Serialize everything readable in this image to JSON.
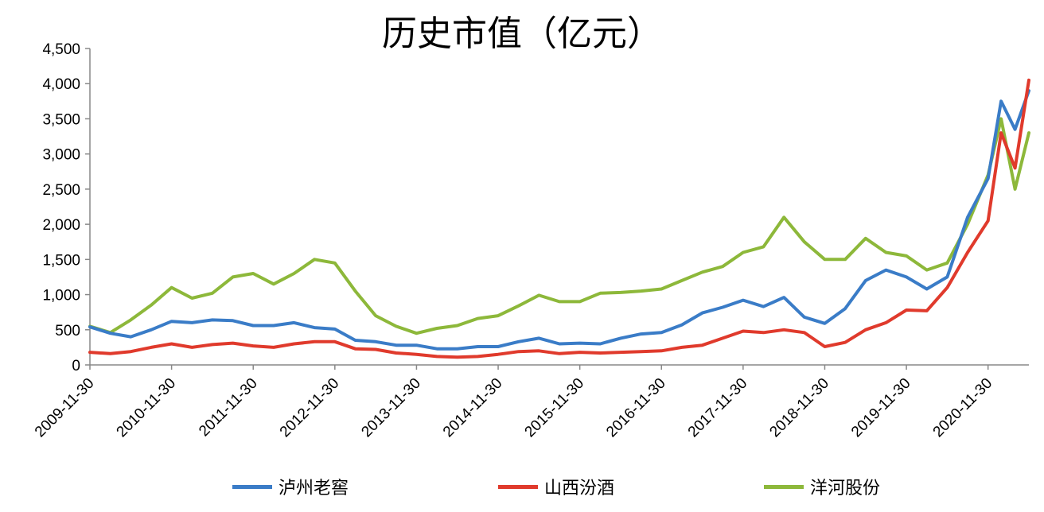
{
  "chart_data": {
    "type": "line",
    "title": "历史市值（亿元）",
    "xlabel": "",
    "ylabel": "",
    "ylim": [
      0,
      4500
    ],
    "yticks": [
      0,
      500,
      1000,
      1500,
      2000,
      2500,
      3000,
      3500,
      4000,
      4500
    ],
    "ytick_labels": [
      "0",
      "500",
      "1,000",
      "1,500",
      "2,000",
      "2,500",
      "3,000",
      "3,500",
      "4,000",
      "4,500"
    ],
    "xticks": [
      "2009-11-30",
      "2010-11-30",
      "2011-11-30",
      "2012-11-30",
      "2013-11-30",
      "2014-11-30",
      "2015-11-30",
      "2016-11-30",
      "2017-11-30",
      "2018-11-30",
      "2019-11-30",
      "2020-11-30"
    ],
    "x": [
      2009.92,
      2010.17,
      2010.42,
      2010.67,
      2010.92,
      2011.17,
      2011.42,
      2011.67,
      2011.92,
      2012.17,
      2012.42,
      2012.67,
      2012.92,
      2013.17,
      2013.42,
      2013.67,
      2013.92,
      2014.17,
      2014.42,
      2014.67,
      2014.92,
      2015.17,
      2015.42,
      2015.67,
      2015.92,
      2016.17,
      2016.42,
      2016.67,
      2016.92,
      2017.17,
      2017.42,
      2017.67,
      2017.92,
      2018.17,
      2018.42,
      2018.67,
      2018.92,
      2019.17,
      2019.42,
      2019.67,
      2019.92,
      2020.17,
      2020.42,
      2020.67,
      2020.92,
      2021.08,
      2021.25,
      2021.42
    ],
    "series": [
      {
        "name": "泸州老窖",
        "color": "#3a7cc7",
        "values": [
          540,
          450,
          400,
          500,
          620,
          600,
          640,
          630,
          560,
          560,
          600,
          530,
          510,
          350,
          330,
          280,
          280,
          230,
          230,
          260,
          260,
          330,
          380,
          300,
          310,
          300,
          380,
          440,
          460,
          570,
          740,
          820,
          920,
          830,
          960,
          680,
          590,
          800,
          1200,
          1350,
          1250,
          1080,
          1250,
          2100,
          2650,
          3750,
          3350,
          3900
        ]
      },
      {
        "name": "山西汾酒",
        "color": "#e03a2c",
        "values": [
          180,
          160,
          190,
          250,
          300,
          250,
          290,
          310,
          270,
          250,
          300,
          330,
          330,
          230,
          220,
          170,
          150,
          120,
          110,
          120,
          150,
          190,
          200,
          160,
          180,
          170,
          180,
          190,
          200,
          250,
          280,
          380,
          480,
          460,
          500,
          460,
          260,
          320,
          500,
          600,
          780,
          770,
          1100,
          1600,
          2050,
          3300,
          2800,
          4050
        ]
      },
      {
        "name": "洋河股份",
        "color": "#8db83a",
        "values": [
          550,
          460,
          640,
          850,
          1100,
          950,
          1020,
          1250,
          1300,
          1150,
          1300,
          1500,
          1450,
          1050,
          700,
          550,
          450,
          520,
          560,
          660,
          700,
          840,
          990,
          900,
          900,
          1020,
          1030,
          1050,
          1080,
          1200,
          1320,
          1400,
          1600,
          1680,
          2100,
          1750,
          1500,
          1500,
          1800,
          1600,
          1550,
          1350,
          1450,
          2000,
          2700,
          3500,
          2500,
          3300
        ]
      }
    ]
  },
  "legend": {
    "items": [
      {
        "label": "泸州老窖",
        "color": "#3a7cc7"
      },
      {
        "label": "山西汾酒",
        "color": "#e03a2c"
      },
      {
        "label": "洋河股份",
        "color": "#8db83a"
      }
    ]
  }
}
